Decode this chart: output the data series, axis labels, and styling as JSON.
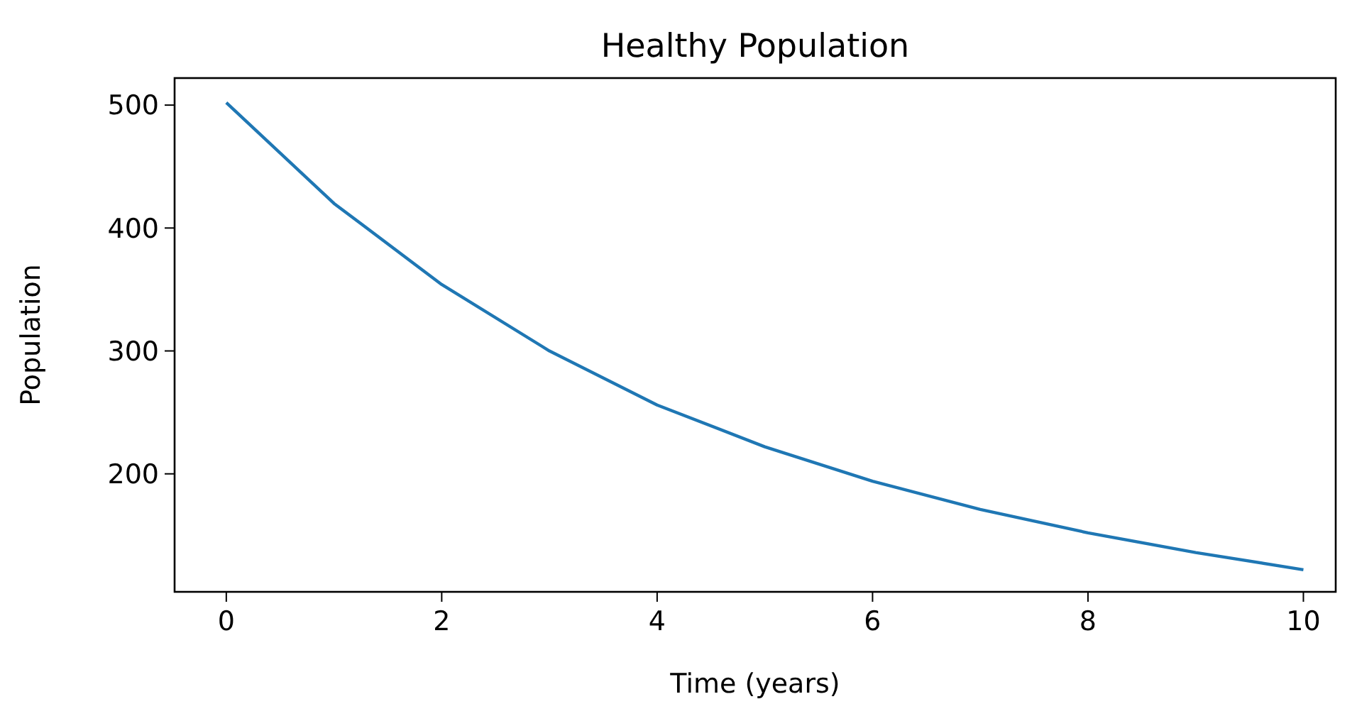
{
  "chart_data": {
    "type": "line",
    "title": "Healthy Population",
    "xlabel": "Time (years)",
    "ylabel": "Population",
    "x": [
      0,
      1,
      2,
      3,
      4,
      5,
      6,
      7,
      8,
      9,
      10
    ],
    "series": [
      {
        "color": "#1f77b4",
        "values": [
          502,
          420,
          354,
          300,
          256,
          222,
          194,
          171,
          152,
          136,
          122
        ]
      }
    ],
    "xlim": [
      -0.48,
      10.3
    ],
    "ylim": [
      104,
      522
    ],
    "xticks": [
      0,
      2,
      4,
      6,
      8,
      10
    ],
    "yticks": [
      200,
      300,
      400,
      500
    ],
    "grid": false,
    "marker": "none",
    "line_style": "solid"
  }
}
